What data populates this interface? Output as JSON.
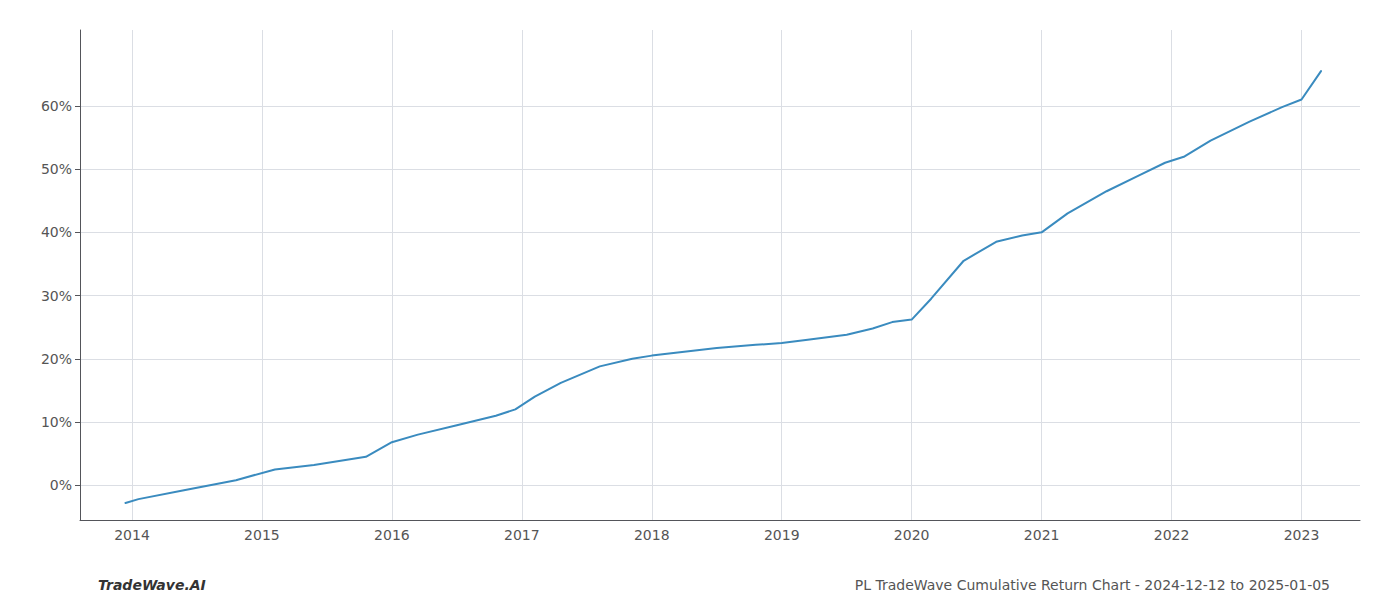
{
  "chart_data": {
    "type": "line",
    "x": [
      2013.95,
      2014.05,
      2014.4,
      2014.8,
      2015.1,
      2015.4,
      2015.8,
      2016.0,
      2016.2,
      2016.5,
      2016.8,
      2016.95,
      2017.1,
      2017.3,
      2017.6,
      2017.85,
      2018.0,
      2018.2,
      2018.5,
      2018.8,
      2019.0,
      2019.2,
      2019.5,
      2019.7,
      2019.85,
      2020.0,
      2020.15,
      2020.4,
      2020.65,
      2020.85,
      2021.0,
      2021.2,
      2021.5,
      2021.75,
      2021.95,
      2022.1,
      2022.3,
      2022.6,
      2022.85,
      2023.0,
      2023.15
    ],
    "values": [
      -0.028,
      -0.022,
      -0.008,
      0.008,
      0.025,
      0.032,
      0.045,
      0.068,
      0.08,
      0.095,
      0.11,
      0.12,
      0.14,
      0.162,
      0.188,
      0.2,
      0.205,
      0.21,
      0.217,
      0.222,
      0.225,
      0.23,
      0.238,
      0.248,
      0.258,
      0.262,
      0.295,
      0.355,
      0.385,
      0.395,
      0.4,
      0.43,
      0.465,
      0.49,
      0.51,
      0.52,
      0.545,
      0.575,
      0.598,
      0.61,
      0.655
    ],
    "color": "#3a8bbf",
    "xlim": [
      2013.6,
      2023.45
    ],
    "xticks": [
      2014,
      2015,
      2016,
      2017,
      2018,
      2019,
      2020,
      2021,
      2022,
      2023
    ],
    "ylim": [
      -0.055,
      0.72
    ],
    "yticks": [
      {
        "value": 0.0,
        "label": "0%"
      },
      {
        "value": 0.1,
        "label": "10%"
      },
      {
        "value": 0.2,
        "label": "20%"
      },
      {
        "value": 0.3,
        "label": "30%"
      },
      {
        "value": 0.4,
        "label": "40%"
      },
      {
        "value": 0.5,
        "label": "50%"
      },
      {
        "value": 0.6,
        "label": "60%"
      }
    ],
    "grid": true,
    "annotations": [
      "TradeWave.AI",
      "PL TradeWave Cumulative Return Chart - 2024-12-12 to 2025-01-05"
    ]
  }
}
